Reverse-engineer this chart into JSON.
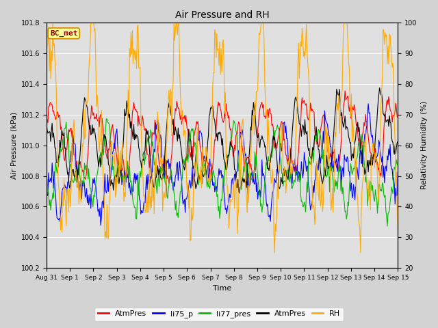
{
  "title": "Air Pressure and RH",
  "xlabel": "Time",
  "ylabel_left": "Air Pressure (kPa)",
  "ylabel_right": "Relativity Humidity (%)",
  "ylim_left": [
    100.2,
    101.8
  ],
  "ylim_right": [
    20,
    100
  ],
  "yticks_left": [
    100.2,
    100.4,
    100.6,
    100.8,
    101.0,
    101.2,
    101.4,
    101.6,
    101.8
  ],
  "yticks_right": [
    20,
    30,
    40,
    50,
    60,
    70,
    80,
    90,
    100
  ],
  "xtick_labels": [
    "Aug 31",
    "Sep 1",
    "Sep 2",
    "Sep 3",
    "Sep 4",
    "Sep 5",
    "Sep 6",
    "Sep 7",
    "Sep 8",
    "Sep 9",
    "Sep 10",
    "Sep 11",
    "Sep 12",
    "Sep 13",
    "Sep 14",
    "Sep 15"
  ],
  "series_colors": {
    "AtmPres_red": "#ff0000",
    "li75_p": "#0000ff",
    "li77_pres": "#00bb00",
    "AtmPres_black": "#000000",
    "RH": "#ffaa00"
  },
  "legend_labels": [
    "AtmPres",
    "li75_p",
    "li77_pres",
    "AtmPres",
    "RH"
  ],
  "legend_colors": [
    "#ff0000",
    "#0000ff",
    "#00bb00",
    "#000000",
    "#ffaa00"
  ],
  "background_color": "#d3d3d3",
  "plot_bg_color": "#e0e0e0",
  "annotation_text": "BC_met",
  "annotation_color": "#8b0000",
  "annotation_bg": "#ffff99",
  "seed": 42,
  "n_points": 500,
  "linewidth": 0.8
}
